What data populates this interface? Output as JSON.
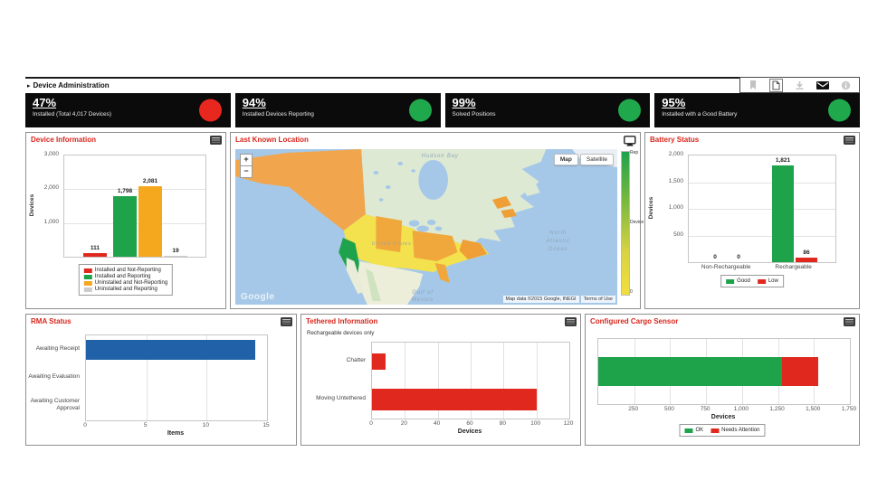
{
  "header": {
    "arrow": "▸",
    "title": "Device Administration",
    "icons": [
      "bookmark-icon",
      "document-icon",
      "download-icon",
      "envelope-icon",
      "info-icon"
    ]
  },
  "kpi_tiles": [
    {
      "percent": "47%",
      "label": "Installed (Total 4,017 Devices)",
      "status_color": "#e8281e"
    },
    {
      "percent": "94%",
      "label": "Installed Devices Reporting",
      "status_color": "#1fa84c"
    },
    {
      "percent": "99%",
      "label": "Solved Positions",
      "status_color": "#1fa84c"
    },
    {
      "percent": "95%",
      "label": "Installed with a Good Battery",
      "status_color": "#1fa84c"
    }
  ],
  "map": {
    "title": "Last Known Location",
    "zoom_in": "+",
    "zoom_out": "−",
    "map_button": "Map",
    "satellite_button": "Satellite",
    "google_logo": "Google",
    "attribution": "Map data ©2015 Google, INEGI",
    "terms": "Terms of Use",
    "labels": {
      "hudson_bay": "Hudson Bay",
      "united_states": "United States",
      "ocean_lines": [
        "North",
        "Atlantic",
        "Ocean"
      ],
      "gulf_lines": [
        "Gulf of",
        "Mexico"
      ]
    },
    "scale": {
      "top": "Rep",
      "middle": "Device",
      "bottom": "0"
    }
  },
  "chart_data": [
    {
      "id": "device_information",
      "type": "bar",
      "title": "Device Information",
      "ylabel": "Devices",
      "ylim": [
        0,
        3000
      ],
      "yticks": [
        {
          "v": 1000,
          "label": "1,000"
        },
        {
          "v": 2000,
          "label": "2,000"
        },
        {
          "v": 3000,
          "label": "3,000"
        }
      ],
      "categories": [
        "Installed and Not-Reporting",
        "Installed and Reporting",
        "Uninstalled and Not-Reporting",
        "Uninstalled and Reporting"
      ],
      "values": [
        111,
        1798,
        2081,
        19
      ],
      "value_labels": [
        "111",
        "1,798",
        "2,081",
        "19"
      ],
      "colors": [
        "#e0281e",
        "#1ea24a",
        "#f5a81d",
        "#cccccc"
      ],
      "legend_position": "bottom"
    },
    {
      "id": "battery_status",
      "type": "grouped_bar",
      "title": "Battery Status",
      "ylabel": "Devices",
      "ylim": [
        0,
        2000
      ],
      "yticks": [
        {
          "v": 500,
          "label": "500"
        },
        {
          "v": 1000,
          "label": "1,000"
        },
        {
          "v": 1500,
          "label": "1,500"
        },
        {
          "v": 2000,
          "label": "2,000"
        }
      ],
      "categories": [
        "Non-Rechargeable",
        "Rechargeable"
      ],
      "series": [
        {
          "name": "Good",
          "color": "#1ea24a",
          "values": [
            0,
            1821
          ],
          "value_labels": [
            "0",
            "1,821"
          ]
        },
        {
          "name": "Low",
          "color": "#e0281e",
          "values": [
            0,
            86
          ],
          "value_labels": [
            "0",
            "86"
          ]
        }
      ],
      "legend_position": "bottom"
    },
    {
      "id": "rma_status",
      "type": "hbar",
      "title": "RMA Status",
      "xlabel": "Items",
      "xlim": [
        0,
        15
      ],
      "xticks": [
        {
          "v": 0,
          "label": "0"
        },
        {
          "v": 5,
          "label": "5"
        },
        {
          "v": 10,
          "label": "10"
        },
        {
          "v": 15,
          "label": "15"
        }
      ],
      "categories": [
        "Awaiting Receipt",
        "Awaiting Evaluation",
        "Awaiting Customer Approval"
      ],
      "values": [
        14,
        0,
        0
      ],
      "color": "#2161a8"
    },
    {
      "id": "tethered_information",
      "type": "hbar",
      "title": "Tethered Information",
      "subtitle": "Rechargeable devices only",
      "xlabel": "Devices",
      "xlim": [
        0,
        120
      ],
      "xticks": [
        {
          "v": 0,
          "label": "0"
        },
        {
          "v": 20,
          "label": "20"
        },
        {
          "v": 40,
          "label": "40"
        },
        {
          "v": 60,
          "label": "60"
        },
        {
          "v": 80,
          "label": "80"
        },
        {
          "v": 100,
          "label": "100"
        },
        {
          "v": 120,
          "label": "120"
        }
      ],
      "categories": [
        "Chatter",
        "Moving Untethered"
      ],
      "values": [
        8,
        100
      ],
      "color": "#e0281e"
    },
    {
      "id": "configured_cargo_sensor",
      "type": "stacked_hbar",
      "title": "Configured Cargo Sensor",
      "xlabel": "Devices",
      "xlim": [
        0,
        1750
      ],
      "xticks": [
        {
          "v": 250,
          "label": "250"
        },
        {
          "v": 500,
          "label": "500"
        },
        {
          "v": 750,
          "label": "750"
        },
        {
          "v": 1000,
          "label": "1,000"
        },
        {
          "v": 1250,
          "label": "1,250"
        },
        {
          "v": 1500,
          "label": "1,500"
        },
        {
          "v": 1750,
          "label": "1,750"
        }
      ],
      "series": [
        {
          "name": "OK",
          "color": "#1ea24a",
          "value": 1275
        },
        {
          "name": "Needs Attention",
          "color": "#e0281e",
          "value": 250
        }
      ],
      "legend_position": "bottom"
    }
  ]
}
